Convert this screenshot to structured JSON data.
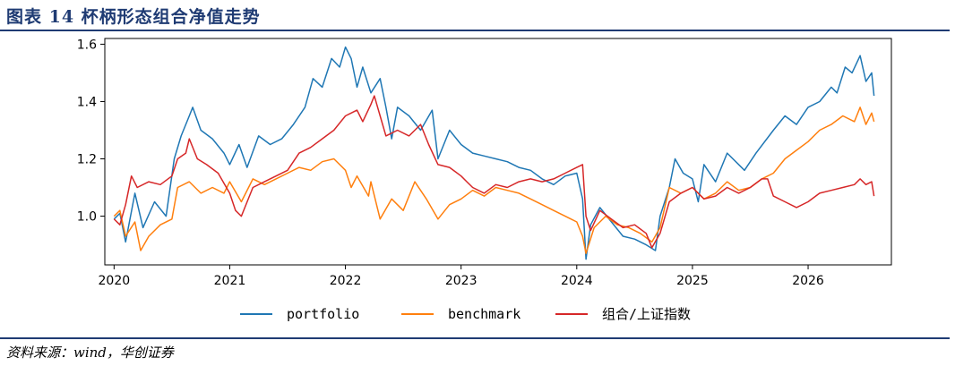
{
  "header": {
    "title": "图表 14   杯柄形态组合净值走势"
  },
  "footer": {
    "source": "资料来源：wind，华创证券"
  },
  "chart_data": {
    "type": "line",
    "ylim": [
      0.83,
      1.62
    ],
    "xlim": [
      2019.92,
      2026.72
    ],
    "yticks": [
      {
        "value": 1.0,
        "label": "1.0"
      },
      {
        "value": 1.2,
        "label": "1.2"
      },
      {
        "value": 1.4,
        "label": "1.4"
      },
      {
        "value": 1.6,
        "label": "1.6"
      }
    ],
    "xticks": [
      {
        "value": 2020,
        "label": "2020"
      },
      {
        "value": 2021,
        "label": "2021"
      },
      {
        "value": 2022,
        "label": "2022"
      },
      {
        "value": 2023,
        "label": "2023"
      },
      {
        "value": 2024,
        "label": "2024"
      },
      {
        "value": 2025,
        "label": "2025"
      },
      {
        "value": 2026,
        "label": "2026"
      }
    ],
    "legend_position": "bottom",
    "grid": false,
    "series": [
      {
        "name": "portfolio",
        "color": "#1f77b4",
        "points": [
          [
            2020.0,
            0.99
          ],
          [
            2020.05,
            1.01
          ],
          [
            2020.1,
            0.91
          ],
          [
            2020.18,
            1.08
          ],
          [
            2020.25,
            0.96
          ],
          [
            2020.35,
            1.05
          ],
          [
            2020.45,
            1.0
          ],
          [
            2020.52,
            1.2
          ],
          [
            2020.58,
            1.28
          ],
          [
            2020.65,
            1.35
          ],
          [
            2020.68,
            1.38
          ],
          [
            2020.75,
            1.3
          ],
          [
            2020.85,
            1.27
          ],
          [
            2020.95,
            1.22
          ],
          [
            2021.0,
            1.18
          ],
          [
            2021.08,
            1.25
          ],
          [
            2021.15,
            1.17
          ],
          [
            2021.25,
            1.28
          ],
          [
            2021.35,
            1.25
          ],
          [
            2021.45,
            1.27
          ],
          [
            2021.55,
            1.32
          ],
          [
            2021.65,
            1.38
          ],
          [
            2021.72,
            1.48
          ],
          [
            2021.8,
            1.45
          ],
          [
            2021.88,
            1.55
          ],
          [
            2021.95,
            1.52
          ],
          [
            2022.0,
            1.59
          ],
          [
            2022.05,
            1.55
          ],
          [
            2022.1,
            1.45
          ],
          [
            2022.15,
            1.52
          ],
          [
            2022.22,
            1.43
          ],
          [
            2022.3,
            1.48
          ],
          [
            2022.35,
            1.38
          ],
          [
            2022.4,
            1.27
          ],
          [
            2022.45,
            1.38
          ],
          [
            2022.55,
            1.35
          ],
          [
            2022.65,
            1.3
          ],
          [
            2022.75,
            1.37
          ],
          [
            2022.8,
            1.2
          ],
          [
            2022.9,
            1.3
          ],
          [
            2023.0,
            1.25
          ],
          [
            2023.1,
            1.22
          ],
          [
            2023.2,
            1.21
          ],
          [
            2023.3,
            1.2
          ],
          [
            2023.4,
            1.19
          ],
          [
            2023.5,
            1.17
          ],
          [
            2023.6,
            1.16
          ],
          [
            2023.7,
            1.13
          ],
          [
            2023.8,
            1.11
          ],
          [
            2023.9,
            1.14
          ],
          [
            2024.0,
            1.15
          ],
          [
            2024.05,
            1.06
          ],
          [
            2024.08,
            0.85
          ],
          [
            2024.12,
            0.97
          ],
          [
            2024.2,
            1.03
          ],
          [
            2024.3,
            0.98
          ],
          [
            2024.4,
            0.93
          ],
          [
            2024.5,
            0.92
          ],
          [
            2024.6,
            0.9
          ],
          [
            2024.68,
            0.88
          ],
          [
            2024.72,
            1.0
          ],
          [
            2024.8,
            1.1
          ],
          [
            2024.85,
            1.2
          ],
          [
            2024.92,
            1.15
          ],
          [
            2025.0,
            1.13
          ],
          [
            2025.05,
            1.05
          ],
          [
            2025.1,
            1.18
          ],
          [
            2025.2,
            1.12
          ],
          [
            2025.3,
            1.22
          ],
          [
            2025.45,
            1.16
          ],
          [
            2025.55,
            1.22
          ],
          [
            2025.7,
            1.3
          ],
          [
            2025.8,
            1.35
          ],
          [
            2025.9,
            1.32
          ],
          [
            2026.0,
            1.38
          ],
          [
            2026.1,
            1.4
          ],
          [
            2026.2,
            1.45
          ],
          [
            2026.25,
            1.43
          ],
          [
            2026.32,
            1.52
          ],
          [
            2026.38,
            1.5
          ],
          [
            2026.45,
            1.56
          ],
          [
            2026.5,
            1.47
          ],
          [
            2026.55,
            1.5
          ],
          [
            2026.57,
            1.42
          ]
        ]
      },
      {
        "name": "benchmark",
        "color": "#ff7f0e",
        "points": [
          [
            2020.0,
            1.0
          ],
          [
            2020.05,
            1.02
          ],
          [
            2020.1,
            0.93
          ],
          [
            2020.18,
            0.98
          ],
          [
            2020.23,
            0.88
          ],
          [
            2020.3,
            0.93
          ],
          [
            2020.4,
            0.97
          ],
          [
            2020.5,
            0.99
          ],
          [
            2020.55,
            1.1
          ],
          [
            2020.65,
            1.12
          ],
          [
            2020.75,
            1.08
          ],
          [
            2020.85,
            1.1
          ],
          [
            2020.95,
            1.08
          ],
          [
            2021.0,
            1.12
          ],
          [
            2021.1,
            1.05
          ],
          [
            2021.2,
            1.13
          ],
          [
            2021.3,
            1.11
          ],
          [
            2021.4,
            1.13
          ],
          [
            2021.5,
            1.15
          ],
          [
            2021.6,
            1.17
          ],
          [
            2021.7,
            1.16
          ],
          [
            2021.8,
            1.19
          ],
          [
            2021.9,
            1.2
          ],
          [
            2022.0,
            1.16
          ],
          [
            2022.05,
            1.1
          ],
          [
            2022.1,
            1.14
          ],
          [
            2022.2,
            1.07
          ],
          [
            2022.22,
            1.12
          ],
          [
            2022.3,
            0.99
          ],
          [
            2022.4,
            1.06
          ],
          [
            2022.5,
            1.02
          ],
          [
            2022.6,
            1.12
          ],
          [
            2022.7,
            1.06
          ],
          [
            2022.8,
            0.99
          ],
          [
            2022.9,
            1.04
          ],
          [
            2023.0,
            1.06
          ],
          [
            2023.1,
            1.09
          ],
          [
            2023.2,
            1.07
          ],
          [
            2023.3,
            1.1
          ],
          [
            2023.4,
            1.09
          ],
          [
            2023.5,
            1.08
          ],
          [
            2023.6,
            1.06
          ],
          [
            2023.7,
            1.04
          ],
          [
            2023.8,
            1.02
          ],
          [
            2023.9,
            1.0
          ],
          [
            2024.0,
            0.98
          ],
          [
            2024.05,
            0.93
          ],
          [
            2024.08,
            0.87
          ],
          [
            2024.15,
            0.96
          ],
          [
            2024.25,
            1.0
          ],
          [
            2024.35,
            0.97
          ],
          [
            2024.45,
            0.96
          ],
          [
            2024.55,
            0.94
          ],
          [
            2024.65,
            0.91
          ],
          [
            2024.72,
            0.96
          ],
          [
            2024.8,
            1.1
          ],
          [
            2024.9,
            1.08
          ],
          [
            2025.0,
            1.1
          ],
          [
            2025.1,
            1.06
          ],
          [
            2025.2,
            1.08
          ],
          [
            2025.3,
            1.12
          ],
          [
            2025.4,
            1.09
          ],
          [
            2025.5,
            1.1
          ],
          [
            2025.6,
            1.13
          ],
          [
            2025.7,
            1.15
          ],
          [
            2025.8,
            1.2
          ],
          [
            2025.9,
            1.23
          ],
          [
            2026.0,
            1.26
          ],
          [
            2026.1,
            1.3
          ],
          [
            2026.2,
            1.32
          ],
          [
            2026.3,
            1.35
          ],
          [
            2026.4,
            1.33
          ],
          [
            2026.45,
            1.38
          ],
          [
            2026.5,
            1.32
          ],
          [
            2026.55,
            1.36
          ],
          [
            2026.57,
            1.33
          ]
        ]
      },
      {
        "name": "组合/上证指数",
        "color": "#d62728",
        "points": [
          [
            2020.0,
            0.99
          ],
          [
            2020.05,
            0.97
          ],
          [
            2020.1,
            1.04
          ],
          [
            2020.15,
            1.14
          ],
          [
            2020.2,
            1.1
          ],
          [
            2020.3,
            1.12
          ],
          [
            2020.4,
            1.11
          ],
          [
            2020.5,
            1.14
          ],
          [
            2020.55,
            1.2
          ],
          [
            2020.62,
            1.22
          ],
          [
            2020.65,
            1.27
          ],
          [
            2020.72,
            1.2
          ],
          [
            2020.8,
            1.18
          ],
          [
            2020.9,
            1.15
          ],
          [
            2021.0,
            1.08
          ],
          [
            2021.05,
            1.02
          ],
          [
            2021.1,
            1.0
          ],
          [
            2021.2,
            1.1
          ],
          [
            2021.3,
            1.12
          ],
          [
            2021.4,
            1.14
          ],
          [
            2021.5,
            1.16
          ],
          [
            2021.6,
            1.22
          ],
          [
            2021.7,
            1.24
          ],
          [
            2021.8,
            1.27
          ],
          [
            2021.9,
            1.3
          ],
          [
            2022.0,
            1.35
          ],
          [
            2022.1,
            1.37
          ],
          [
            2022.15,
            1.33
          ],
          [
            2022.22,
            1.39
          ],
          [
            2022.25,
            1.42
          ],
          [
            2022.3,
            1.35
          ],
          [
            2022.35,
            1.28
          ],
          [
            2022.45,
            1.3
          ],
          [
            2022.55,
            1.28
          ],
          [
            2022.65,
            1.32
          ],
          [
            2022.72,
            1.25
          ],
          [
            2022.8,
            1.18
          ],
          [
            2022.9,
            1.17
          ],
          [
            2023.0,
            1.14
          ],
          [
            2023.05,
            1.12
          ],
          [
            2023.1,
            1.1
          ],
          [
            2023.2,
            1.08
          ],
          [
            2023.3,
            1.11
          ],
          [
            2023.4,
            1.1
          ],
          [
            2023.5,
            1.12
          ],
          [
            2023.6,
            1.13
          ],
          [
            2023.7,
            1.12
          ],
          [
            2023.8,
            1.13
          ],
          [
            2023.9,
            1.15
          ],
          [
            2024.0,
            1.17
          ],
          [
            2024.05,
            1.18
          ],
          [
            2024.08,
            1.0
          ],
          [
            2024.12,
            0.95
          ],
          [
            2024.2,
            1.02
          ],
          [
            2024.3,
            0.99
          ],
          [
            2024.4,
            0.96
          ],
          [
            2024.5,
            0.97
          ],
          [
            2024.6,
            0.94
          ],
          [
            2024.65,
            0.89
          ],
          [
            2024.72,
            0.94
          ],
          [
            2024.8,
            1.05
          ],
          [
            2024.9,
            1.08
          ],
          [
            2025.0,
            1.1
          ],
          [
            2025.1,
            1.06
          ],
          [
            2025.2,
            1.07
          ],
          [
            2025.3,
            1.1
          ],
          [
            2025.4,
            1.08
          ],
          [
            2025.5,
            1.1
          ],
          [
            2025.6,
            1.13
          ],
          [
            2025.65,
            1.13
          ],
          [
            2025.7,
            1.07
          ],
          [
            2025.8,
            1.05
          ],
          [
            2025.9,
            1.03
          ],
          [
            2026.0,
            1.05
          ],
          [
            2026.1,
            1.08
          ],
          [
            2026.2,
            1.09
          ],
          [
            2026.3,
            1.1
          ],
          [
            2026.4,
            1.11
          ],
          [
            2026.45,
            1.13
          ],
          [
            2026.5,
            1.11
          ],
          [
            2026.55,
            1.12
          ],
          [
            2026.57,
            1.07
          ]
        ]
      }
    ]
  }
}
